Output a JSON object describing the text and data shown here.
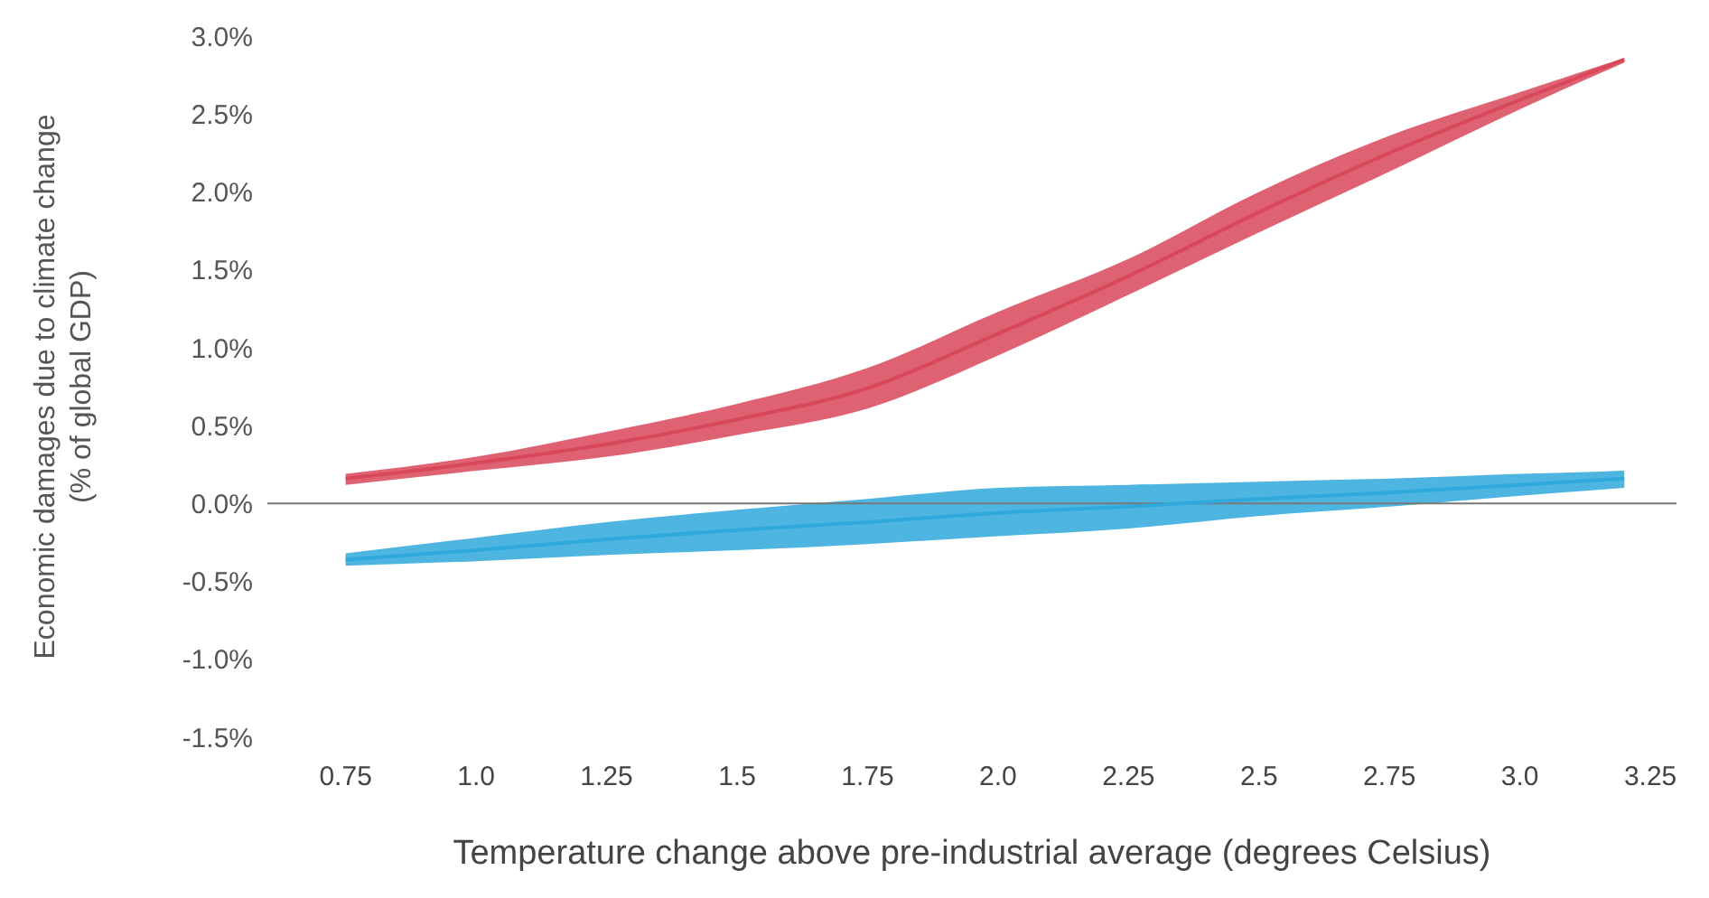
{
  "chart_data": {
    "type": "line",
    "xlabel": "Temperature change above pre-industrial average (degrees Celsius)",
    "ylabel": "Economic damages due to climate change\n(% of global GDP)",
    "x": [
      0.75,
      1.0,
      1.25,
      1.5,
      1.75,
      2.0,
      2.25,
      2.5,
      2.75,
      3.0,
      3.2
    ],
    "series": [
      {
        "color": "#d9475a",
        "values": [
          0.16,
          0.26,
          0.38,
          0.54,
          0.74,
          1.09,
          1.46,
          1.87,
          2.25,
          2.59,
          2.85
        ],
        "lower": [
          0.12,
          0.21,
          0.3,
          0.44,
          0.61,
          0.95,
          1.34,
          1.74,
          2.13,
          2.53,
          2.83
        ],
        "upper": [
          0.19,
          0.3,
          0.46,
          0.64,
          0.87,
          1.23,
          1.57,
          2.0,
          2.36,
          2.64,
          2.86
        ]
      },
      {
        "color": "#2fa8dc",
        "values": [
          -0.36,
          -0.3,
          -0.23,
          -0.17,
          -0.12,
          -0.06,
          -0.02,
          0.03,
          0.07,
          0.12,
          0.16
        ],
        "lower": [
          -0.4,
          -0.37,
          -0.33,
          -0.3,
          -0.26,
          -0.21,
          -0.16,
          -0.08,
          -0.02,
          0.05,
          0.1
        ],
        "upper": [
          -0.32,
          -0.22,
          -0.12,
          -0.04,
          0.03,
          0.1,
          0.12,
          0.14,
          0.16,
          0.19,
          0.21
        ]
      }
    ],
    "xlim": [
      0.6,
      3.3
    ],
    "ylim": [
      -1.5,
      3
    ],
    "xticks": [
      0.75,
      {
        "value": 1,
        "label": "1.0"
      },
      1.25,
      1.5,
      1.75,
      {
        "value": 2,
        "label": "2.0"
      },
      2.25,
      2.5,
      2.75,
      {
        "value": 3,
        "label": "3.0"
      },
      3.25
    ],
    "yticks": [
      {
        "value": -1.5,
        "label": "-1.5%"
      },
      {
        "value": -1,
        "label": "-1.0%"
      },
      {
        "value": -0.5,
        "label": "-0.5%"
      },
      {
        "value": 0,
        "label": "0.0%"
      },
      {
        "value": 0.5,
        "label": "0.5%"
      },
      {
        "value": 1,
        "label": "1.0%"
      },
      {
        "value": 1.5,
        "label": "1.5%"
      },
      {
        "value": 2,
        "label": "2.0%"
      },
      {
        "value": 2.5,
        "label": "2.5%"
      },
      {
        "value": 3,
        "label": "3.0%"
      }
    ],
    "ref_lines": [
      {
        "axis": "y",
        "value": 0,
        "color": "#777777"
      }
    ],
    "grid": false,
    "legend": false
  }
}
